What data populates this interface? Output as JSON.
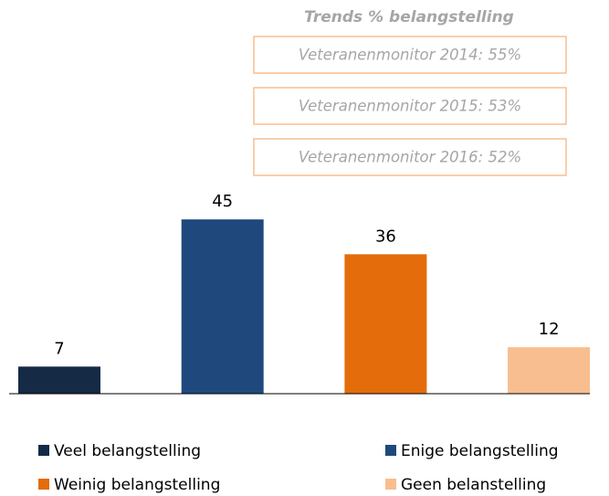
{
  "chart_data": {
    "type": "bar",
    "title": "Trends % belangstelling",
    "annotations": [
      "Veteranenmonitor 2014: 55%",
      "Veteranenmonitor 2015: 53%",
      "Veteranenmonitor 2016: 52%"
    ],
    "categories": [
      "Veel belangstelling",
      "Enige belangstelling",
      "Weinig belangstelling",
      "Geen belanstelling"
    ],
    "values": [
      7,
      45,
      36,
      12
    ],
    "colors": [
      "#152a45",
      "#1f497d",
      "#e46c0a",
      "#f9be8f"
    ],
    "legend": "bottom"
  }
}
